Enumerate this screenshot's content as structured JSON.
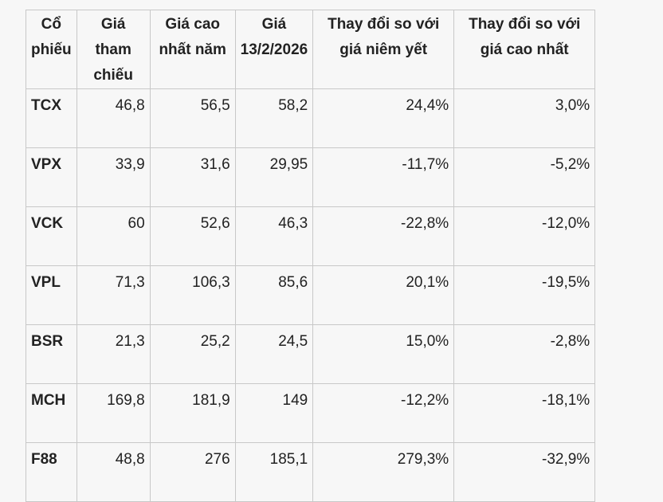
{
  "table": {
    "headers": [
      "Cổ phiếu",
      "Giá tham chiếu",
      "Giá cao nhất năm",
      "Giá 13/2/2026",
      "Thay đổi so với giá niêm yết",
      "Thay đổi so với giá cao nhất"
    ],
    "rows": [
      [
        "TCX",
        "46,8",
        "56,5",
        "58,2",
        "24,4%",
        "3,0%"
      ],
      [
        "VPX",
        "33,9",
        "31,6",
        "29,95",
        "-11,7%",
        "-5,2%"
      ],
      [
        "VCK",
        "60",
        "52,6",
        "46,3",
        "-22,8%",
        "-12,0%"
      ],
      [
        "VPL",
        "71,3",
        "106,3",
        "85,6",
        "20,1%",
        "-19,5%"
      ],
      [
        "BSR",
        "21,3",
        "25,2",
        "24,5",
        "15,0%",
        "-2,8%"
      ],
      [
        "MCH",
        "169,8",
        "181,9",
        "149",
        "-12,2%",
        "-18,1%"
      ],
      [
        "F88",
        "48,8",
        "276",
        "185,1",
        "279,3%",
        "-32,9%"
      ]
    ]
  }
}
